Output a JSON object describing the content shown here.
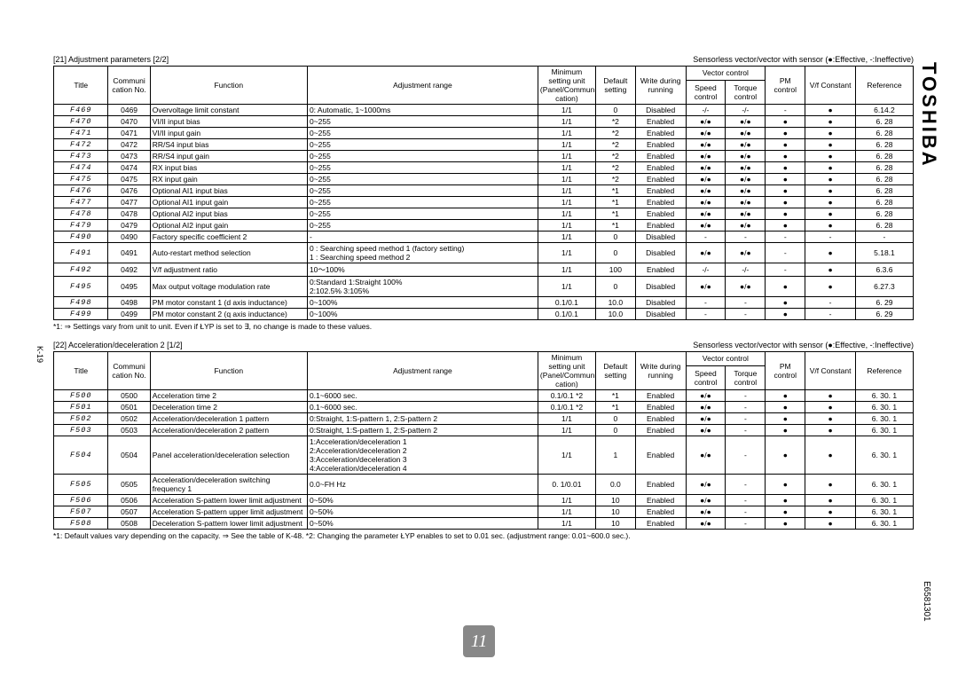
{
  "brand": "TOSHIBA",
  "doc_number": "E6581301",
  "page_marker": "K-19",
  "chapter_badge": "11",
  "colors": {
    "bg": "#ffffff",
    "fg": "#000000",
    "badge": "#888888"
  },
  "headers": {
    "title": "Title",
    "comm": "Communi\ncation\nNo.",
    "func": "Function",
    "adj": "Adjustment range",
    "min": "Minimum\nsetting unit\n(Panel/Communi\ncation)",
    "def": "Default\nsetting",
    "write": "Write during\nrunning",
    "vector_group": "Vector control",
    "speed": "Speed\ncontrol",
    "torque": "Torque\ncontrol",
    "pm": "PM\ncontrol",
    "vf": "V/f Constant",
    "ref": "Reference"
  },
  "table1": {
    "section": "[21] Adjustment parameters [2/2]",
    "effective": "Sensorless vector/vector with sensor (●:Effective, -:Ineffective)",
    "rows": [
      {
        "t": "F469",
        "c": "0469",
        "f": "Overvoltage limit constant",
        "a": "0: Automatic, 1~1000ms",
        "m": "1/1",
        "d": "0",
        "w": "Disabled",
        "s": "-/-",
        "q": "-/-",
        "p": "-",
        "v": "●",
        "r": "6.14.2"
      },
      {
        "t": "F470",
        "c": "0470",
        "f": "VI/II input bias",
        "a": "0~255",
        "m": "1/1",
        "d": "*2",
        "w": "Enabled",
        "s": "●/●",
        "q": "●/●",
        "p": "●",
        "v": "●",
        "r": "6. 28"
      },
      {
        "t": "F471",
        "c": "0471",
        "f": "VI/II input gain",
        "a": "0~255",
        "m": "1/1",
        "d": "*2",
        "w": "Enabled",
        "s": "●/●",
        "q": "●/●",
        "p": "●",
        "v": "●",
        "r": "6. 28"
      },
      {
        "t": "F472",
        "c": "0472",
        "f": "RR/S4 input bias",
        "a": "0~255",
        "m": "1/1",
        "d": "*2",
        "w": "Enabled",
        "s": "●/●",
        "q": "●/●",
        "p": "●",
        "v": "●",
        "r": "6. 28"
      },
      {
        "t": "F473",
        "c": "0473",
        "f": "RR/S4 input gain",
        "a": "0~255",
        "m": "1/1",
        "d": "*2",
        "w": "Enabled",
        "s": "●/●",
        "q": "●/●",
        "p": "●",
        "v": "●",
        "r": "6. 28"
      },
      {
        "t": "F474",
        "c": "0474",
        "f": "RX input bias",
        "a": "0~255",
        "m": "1/1",
        "d": "*2",
        "w": "Enabled",
        "s": "●/●",
        "q": "●/●",
        "p": "●",
        "v": "●",
        "r": "6. 28"
      },
      {
        "t": "F475",
        "c": "0475",
        "f": "RX input gain",
        "a": "0~255",
        "m": "1/1",
        "d": "*2",
        "w": "Enabled",
        "s": "●/●",
        "q": "●/●",
        "p": "●",
        "v": "●",
        "r": "6. 28"
      },
      {
        "t": "F476",
        "c": "0476",
        "f": "Optional AI1 input bias",
        "a": "0~255",
        "m": "1/1",
        "d": "*1",
        "w": "Enabled",
        "s": "●/●",
        "q": "●/●",
        "p": "●",
        "v": "●",
        "r": "6. 28"
      },
      {
        "t": "F477",
        "c": "0477",
        "f": "Optional AI1 input gain",
        "a": "0~255",
        "m": "1/1",
        "d": "*1",
        "w": "Enabled",
        "s": "●/●",
        "q": "●/●",
        "p": "●",
        "v": "●",
        "r": "6. 28"
      },
      {
        "t": "F478",
        "c": "0478",
        "f": "Optional AI2 input bias",
        "a": "0~255",
        "m": "1/1",
        "d": "*1",
        "w": "Enabled",
        "s": "●/●",
        "q": "●/●",
        "p": "●",
        "v": "●",
        "r": "6. 28"
      },
      {
        "t": "F479",
        "c": "0479",
        "f": "Optional AI2 input gain",
        "a": "0~255",
        "m": "1/1",
        "d": "*1",
        "w": "Enabled",
        "s": "●/●",
        "q": "●/●",
        "p": "●",
        "v": "●",
        "r": "6. 28"
      },
      {
        "t": "F490",
        "c": "0490",
        "f": "Factory specific coefficient 2",
        "a": "-",
        "m": "1/1",
        "d": "0",
        "w": "Disabled",
        "s": "-",
        "q": "-",
        "p": "-",
        "v": "-",
        "r": "-"
      },
      {
        "t": "F491",
        "c": "0491",
        "f": "Auto-restart method selection",
        "a": "0 : Searching speed method 1 (factory setting)\n1 : Searching speed method 2",
        "m": "1/1",
        "d": "0",
        "w": "Disabled",
        "s": "●/●",
        "q": "●/●",
        "p": "-",
        "v": "●",
        "r": "5.18.1"
      },
      {
        "t": "F492",
        "c": "0492",
        "f": "V/f adjustment ratio",
        "a": "10～100%",
        "m": "1/1",
        "d": "100",
        "w": "Enabled",
        "s": "-/-",
        "q": "-/-",
        "p": "-",
        "v": "●",
        "r": "6.3.6"
      },
      {
        "t": "F495",
        "c": "0495",
        "f": "Max output voltage modulation rate",
        "a": "0:Standard    1:Straight 100%\n2:102.5%    3:105%",
        "m": "1/1",
        "d": "0",
        "w": "Disabled",
        "s": "●/●",
        "q": "●/●",
        "p": "●",
        "v": "●",
        "r": "6.27.3"
      },
      {
        "t": "F498",
        "c": "0498",
        "f": "PM motor constant 1 (d axis inductance)",
        "a": "0~100%",
        "m": "0.1/0.1",
        "d": "10.0",
        "w": "Disabled",
        "s": "-",
        "q": "-",
        "p": "●",
        "v": "-",
        "r": "6. 29"
      },
      {
        "t": "F499",
        "c": "0499",
        "f": "PM motor constant 2 (q axis inductance)",
        "a": "0~100%",
        "m": "0.1/0.1",
        "d": "10.0",
        "w": "Disabled",
        "s": "-",
        "q": "-",
        "p": "●",
        "v": "-",
        "r": "6. 29"
      }
    ],
    "footnote": "*1: ⇒ Settings vary from unit to unit. Even if ŁYP is set to ∃, no change is made to these values."
  },
  "table2": {
    "section": "[22] Acceleration/deceleration 2 [1/2]",
    "effective": "Sensorless vector/vector with sensor (●:Effective, -:Ineffective)",
    "rows": [
      {
        "t": "F500",
        "c": "0500",
        "f": "Acceleration time 2",
        "a": "0.1~6000 sec.",
        "m": "0.1/0.1 *2",
        "d": "*1",
        "w": "Enabled",
        "s": "●/●",
        "q": "-",
        "p": "●",
        "v": "●",
        "r": "6. 30. 1"
      },
      {
        "t": "F501",
        "c": "0501",
        "f": "Deceleration time 2",
        "a": "0.1~6000 sec.",
        "m": "0.1/0.1 *2",
        "d": "*1",
        "w": "Enabled",
        "s": "●/●",
        "q": "-",
        "p": "●",
        "v": "●",
        "r": "6. 30. 1"
      },
      {
        "t": "F502",
        "c": "0502",
        "f": "Acceleration/deceleration 1 pattern",
        "a": "0:Straight, 1:S-pattern 1, 2:S-pattern 2",
        "m": "1/1",
        "d": "0",
        "w": "Enabled",
        "s": "●/●",
        "q": "-",
        "p": "●",
        "v": "●",
        "r": "6. 30. 1"
      },
      {
        "t": "F503",
        "c": "0503",
        "f": "Acceleration/deceleration 2 pattern",
        "a": "0:Straight, 1:S-pattern 1, 2:S-pattern 2",
        "m": "1/1",
        "d": "0",
        "w": "Enabled",
        "s": "●/●",
        "q": "-",
        "p": "●",
        "v": "●",
        "r": "6. 30. 1"
      },
      {
        "t": "F504",
        "c": "0504",
        "f": "Panel acceleration/deceleration selection",
        "a": "1:Acceleration/deceleration 1\n2:Acceleration/deceleration 2\n3:Acceleration/deceleration 3\n4:Acceleration/deceleration 4",
        "m": "1/1",
        "d": "1",
        "w": "Enabled",
        "s": "●/●",
        "q": "-",
        "p": "●",
        "v": "●",
        "r": "6. 30. 1"
      },
      {
        "t": "F505",
        "c": "0505",
        "f": "Acceleration/deceleration switching frequency 1",
        "a": "0.0~FH Hz",
        "m": "0. 1/0.01",
        "d": "0.0",
        "w": "Enabled",
        "s": "●/●",
        "q": "-",
        "p": "●",
        "v": "●",
        "r": "6. 30. 1"
      },
      {
        "t": "F506",
        "c": "0506",
        "f": "Acceleration S-pattern lower limit adjustment",
        "a": "0~50%",
        "m": "1/1",
        "d": "10",
        "w": "Enabled",
        "s": "●/●",
        "q": "-",
        "p": "●",
        "v": "●",
        "r": "6. 30. 1"
      },
      {
        "t": "F507",
        "c": "0507",
        "f": "Acceleration S-pattern upper limit adjustment",
        "a": "0~50%",
        "m": "1/1",
        "d": "10",
        "w": "Enabled",
        "s": "●/●",
        "q": "-",
        "p": "●",
        "v": "●",
        "r": "6. 30. 1"
      },
      {
        "t": "F508",
        "c": "0508",
        "f": "Deceleration S-pattern lower limit adjustment",
        "a": "0~50%",
        "m": "1/1",
        "d": "10",
        "w": "Enabled",
        "s": "●/●",
        "q": "-",
        "p": "●",
        "v": "●",
        "r": "6. 30. 1"
      }
    ],
    "footnote": "*1: Default values vary depending on the capacity. ⇒ See the table of K-48.\n*2: Changing the parameter ŁYP enables to set to 0.01 sec. (adjustment range: 0.01~600.0 sec.)."
  }
}
